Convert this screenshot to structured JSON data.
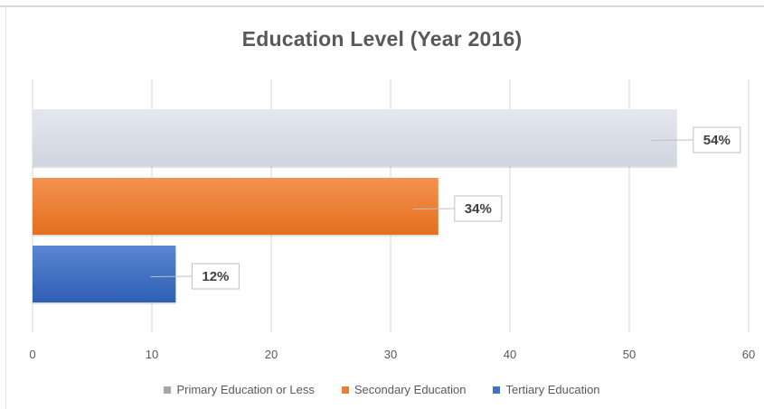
{
  "chart_data": {
    "type": "bar",
    "orientation": "horizontal",
    "title": "Education Level (Year 2016)",
    "xlabel": "",
    "ylabel": "",
    "xlim": [
      0,
      60
    ],
    "x_ticks": [
      0,
      10,
      20,
      30,
      40,
      50,
      60
    ],
    "grid": "vertical",
    "legend_position": "bottom",
    "series": [
      {
        "name": "Primary Education or Less",
        "value": 54,
        "label": "54%",
        "color": "#d6dce5"
      },
      {
        "name": "Secondary Education",
        "value": 34,
        "label": "34%",
        "color": "#ed7d31"
      },
      {
        "name": "Tertiary Education",
        "value": 12,
        "label": "12%",
        "color": "#4472c4"
      }
    ]
  }
}
